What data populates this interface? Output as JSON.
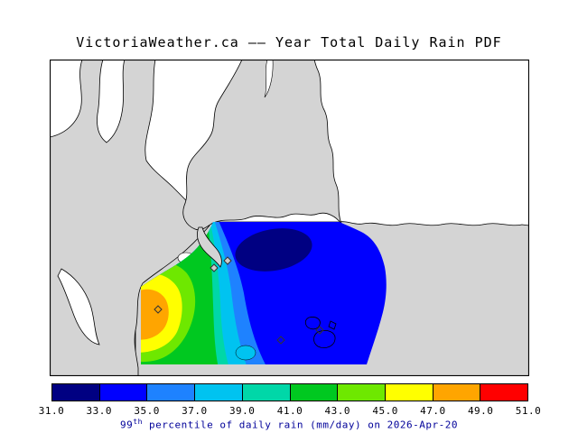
{
  "title": "VictoriaWeather.ca –– Year Total Daily Rain PDF",
  "caption": {
    "prefix": "99",
    "sup": "th",
    "rest": " percentile of daily rain (mm/day) on 2026-Apr-20"
  },
  "map": {
    "water_color": "#ffffff",
    "land_color": "#d4d4d4",
    "coast_color": "#000000",
    "region_description": "Southern Vancouver Island and Salish Sea coastlines with rainfall contour overlay",
    "marker_description": "small diamond station markers"
  },
  "chart_data": {
    "type": "heatmap",
    "subtype": "filled contour map overlay",
    "title": "VictoriaWeather.ca –– Year Total Daily Rain PDF",
    "variable": "99th percentile of daily rain",
    "units": "mm/day",
    "date": "2026-Apr-20",
    "levels": [
      31,
      33,
      35,
      37,
      39,
      41,
      43,
      45,
      47,
      49,
      51
    ],
    "colorbar": {
      "colors": [
        "#000082",
        "#0000ff",
        "#1e82ff",
        "#00c3f0",
        "#00d7a8",
        "#00c820",
        "#6ee800",
        "#ffff00",
        "#ffa500",
        "#ff0000"
      ],
      "ticks": [
        "31.0",
        "33.0",
        "35.0",
        "37.0",
        "39.0",
        "41.0",
        "43.0",
        "45.0",
        "47.0",
        "49.0",
        "51.0"
      ]
    },
    "features": [
      {
        "label": "local minimum",
        "value_range": "31-33 mm/day",
        "location": "dark blue blob in north-central part of domain"
      },
      {
        "label": "background field",
        "value_range": "33-35 mm/day",
        "location": "most of the eastern/central domain"
      },
      {
        "label": "local maximum",
        "value_range": "47-49 mm/day",
        "location": "orange core at the western edge of the domain"
      },
      {
        "label": "gradient bands",
        "value_range": "35-47 mm/day",
        "location": "concentric bands between western maximum and blue background"
      }
    ]
  }
}
